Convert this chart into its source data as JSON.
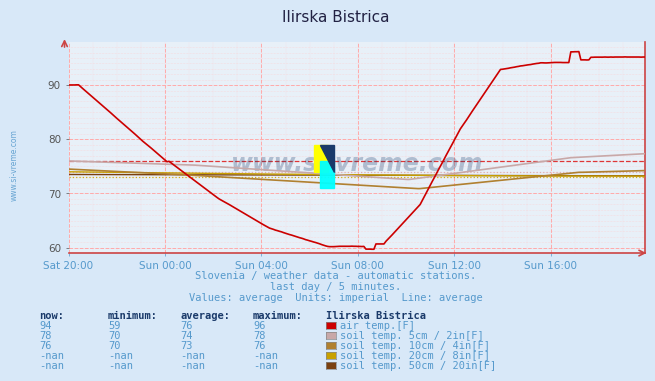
{
  "title": "Ilirska Bistrica",
  "bg_color": "#d8e8f8",
  "plot_bg_color": "#e8f0f8",
  "x_label_color": "#5599cc",
  "y_label_color": "#555555",
  "subtitle1": "Slovenia / weather data - automatic stations.",
  "subtitle2": "last day / 5 minutes.",
  "subtitle3": "Values: average  Units: imperial  Line: average",
  "xlim": [
    0,
    287
  ],
  "ylim": [
    59,
    98
  ],
  "yticks": [
    60,
    70,
    80,
    90
  ],
  "xtick_labels": [
    "Sat 20:00",
    "Sun 00:00",
    "Sun 04:00",
    "Sun 08:00",
    "Sun 12:00",
    "Sun 16:00"
  ],
  "xtick_positions": [
    0,
    48,
    96,
    144,
    192,
    240
  ],
  "line_colors": {
    "air_temp": "#cc0000",
    "soil_5cm": "#c8a8a8",
    "soil_10cm": "#b08030",
    "soil_20cm": "#c8a000",
    "soil_50cm": "#7a4010"
  },
  "avg_lines": {
    "air_temp": 76.0,
    "soil_5cm": 74.0,
    "soil_10cm": 73.0
  },
  "avg_line_colors": {
    "air_temp": "#dd2222",
    "soil_5cm": "#ddaaaa",
    "soil_10cm": "#ccaa00"
  },
  "table_headers": [
    "now:",
    "minimum:",
    "average:",
    "maximum:",
    "Ilirska Bistrica"
  ],
  "table_rows": [
    [
      "94",
      "59",
      "76",
      "96",
      "air temp.[F]"
    ],
    [
      "78",
      "70",
      "74",
      "78",
      "soil temp. 5cm / 2in[F]"
    ],
    [
      "76",
      "70",
      "73",
      "76",
      "soil temp. 10cm / 4in[F]"
    ],
    [
      "-nan",
      "-nan",
      "-nan",
      "-nan",
      "soil temp. 20cm / 8in[F]"
    ],
    [
      "-nan",
      "-nan",
      "-nan",
      "-nan",
      "soil temp. 50cm / 20in[F]"
    ]
  ],
  "row_colors": [
    "#cc0000",
    "#c8a8a8",
    "#b08030",
    "#c8a000",
    "#7a4010"
  ],
  "watermark": "www.si-vreme.com",
  "side_watermark": "www.si-vreme.com"
}
